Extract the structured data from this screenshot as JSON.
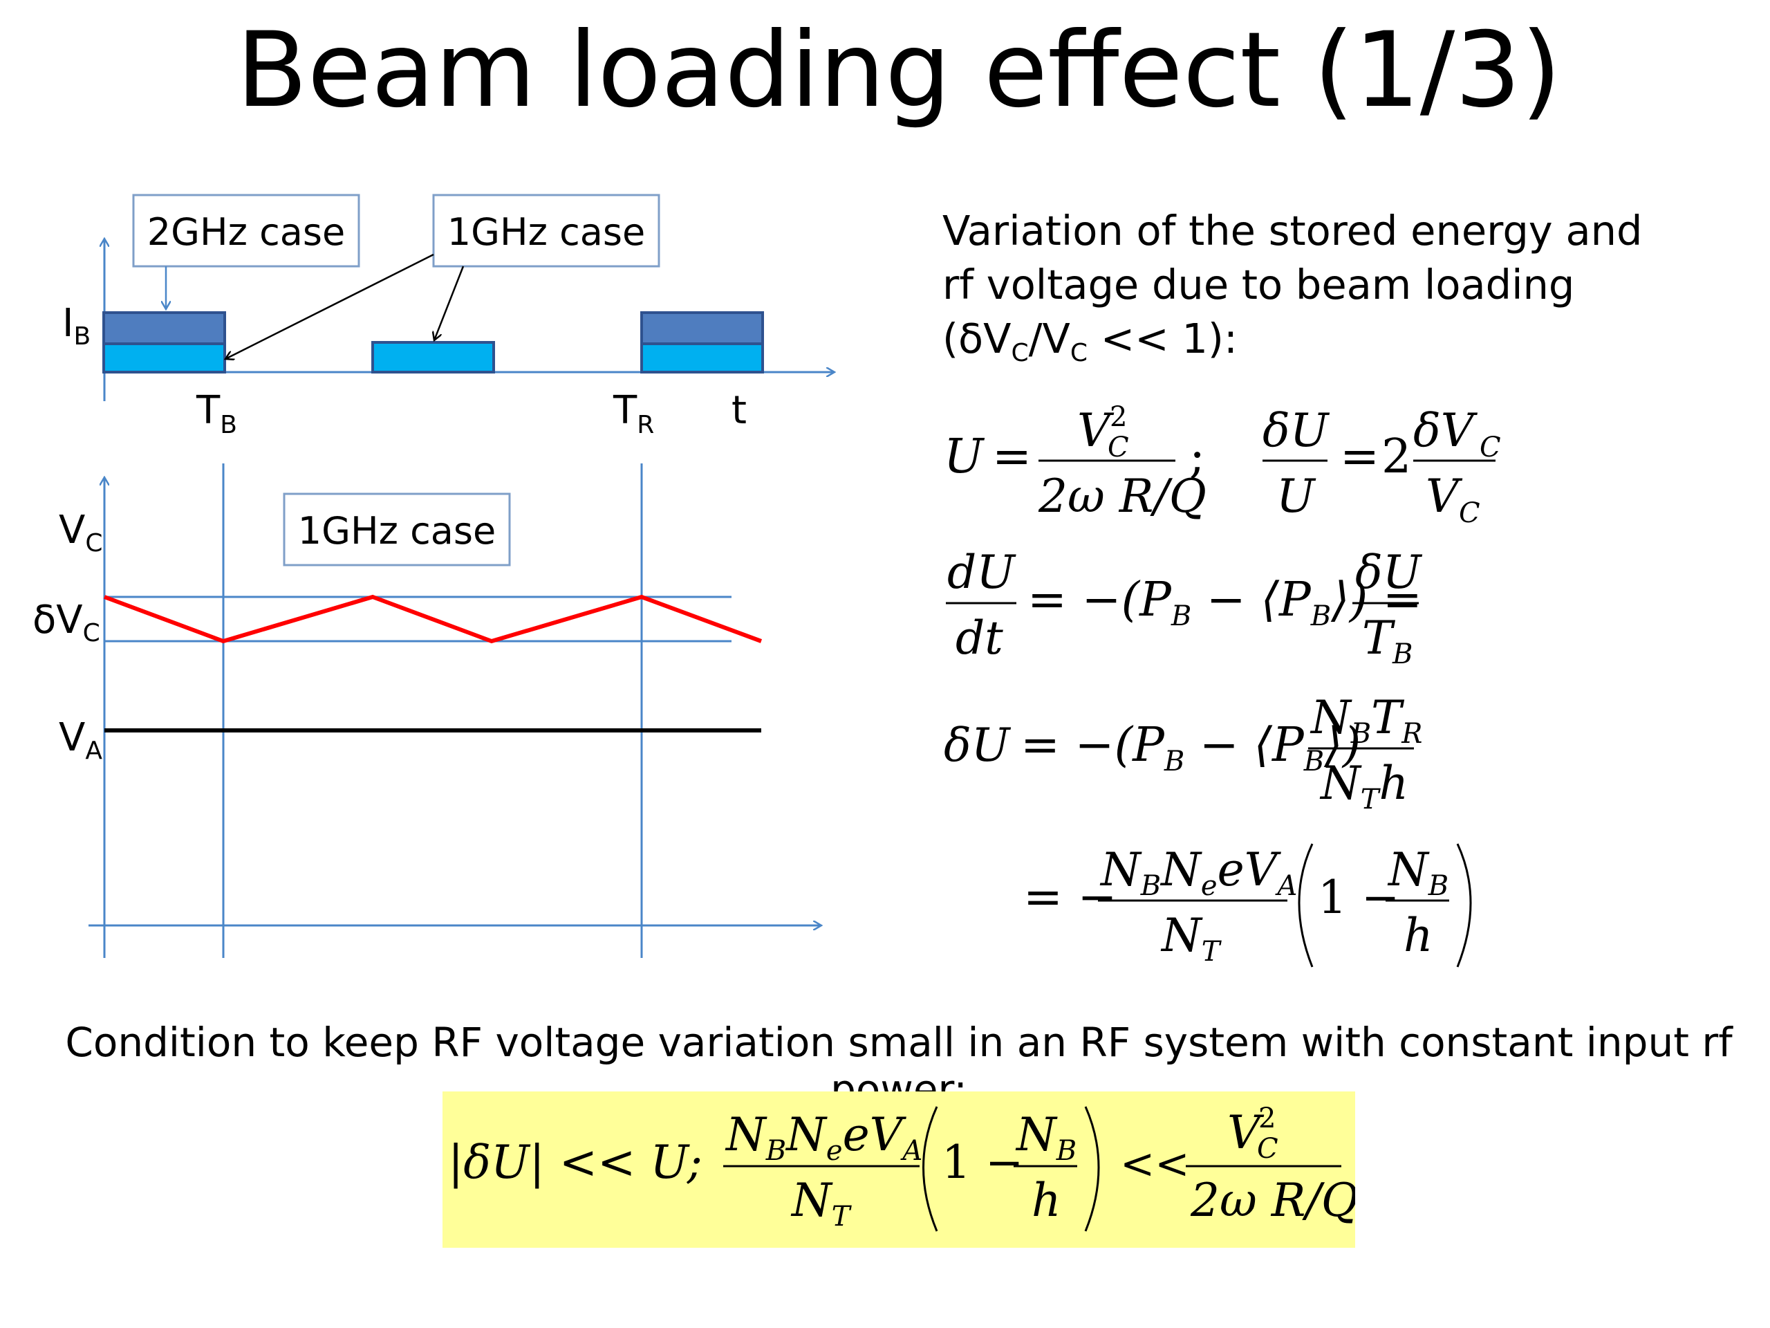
{
  "slide": {
    "title": "Beam loading effect (1/3)"
  },
  "diagram": {
    "label_2ghz": "2GHz case",
    "label_1ghz_top": "1GHz case",
    "label_1ghz_bottom": "1GHz case",
    "axis_labels": {
      "ib_main": "I",
      "ib_sub": "B",
      "tb_main": "T",
      "tb_sub": "B",
      "tr_main": "T",
      "tr_sub": "R",
      "t": "t",
      "vc_main": "V",
      "vc_sub": "C",
      "dvc_main": "δV",
      "dvc_sub": "C",
      "va_main": "V",
      "va_sub": "A"
    },
    "colors": {
      "bunch_2ghz": "#4f7dbf",
      "bunch_1ghz": "#00b0f0",
      "voltage": "#ff0000",
      "axis": "#4a86c8",
      "va_line": "#000000"
    }
  },
  "text": {
    "intro_line1": "Variation of the stored energy and",
    "intro_line2": "rf voltage due to beam loading",
    "intro_p1": "(δV",
    "intro_sub1": "C",
    "intro_p2": "/V",
    "intro_sub2": "C",
    "intro_p3": " << 1):",
    "condition": "Condition to keep RF voltage variation small in an RF system with constant input rf power:"
  },
  "equations": {
    "eq1": {
      "U": "U",
      "eq": "=",
      "V": "V",
      "C": "C",
      "two": "2",
      "den": "2ω R/Q",
      "semi": ";",
      "dU": "δU",
      "U2": "U",
      "eq2": "=",
      "coef": "2",
      "dV": "δV",
      "C2": "C",
      "V2": "V",
      "C3": "C"
    },
    "eq2": {
      "dU": "dU",
      "dt": "dt",
      "mid": "= −(P",
      "B1": "B",
      "mid2": " − ⟨P",
      "B2": "B",
      "end": "⟩) =",
      "dU2": "δU",
      "T": "T",
      "B3": "B"
    },
    "eq3": {
      "lhs": "δU",
      "mid": "= −(P",
      "B1": "B",
      "mid2": " − ⟨P",
      "B2": "B",
      "end": "⟩)",
      "NB": "N",
      "B3": "B",
      "TR": "T",
      "R": "R",
      "NT": "N",
      "T": "T",
      "h": "h"
    },
    "eq4": {
      "eq": "= −",
      "N1": "N",
      "B1": "B",
      "N2": "N",
      "e": "e",
      "eV": "eV",
      "A": "A",
      "NT": "N",
      "T": "T",
      "one": "1 −",
      "N3": "N",
      "B2": "B",
      "h": "h"
    },
    "cond": {
      "abs": "|δU| << U;",
      "N1": "N",
      "B1": "B",
      "N2": "N",
      "e": "e",
      "eV": "eV",
      "A": "A",
      "NT": "N",
      "T": "T",
      "one": "1 −",
      "N3": "N",
      "B2": "B",
      "h": "h",
      "ll": "<<",
      "V": "V",
      "C": "C",
      "two": "2",
      "den": "2ω R/Q"
    }
  }
}
